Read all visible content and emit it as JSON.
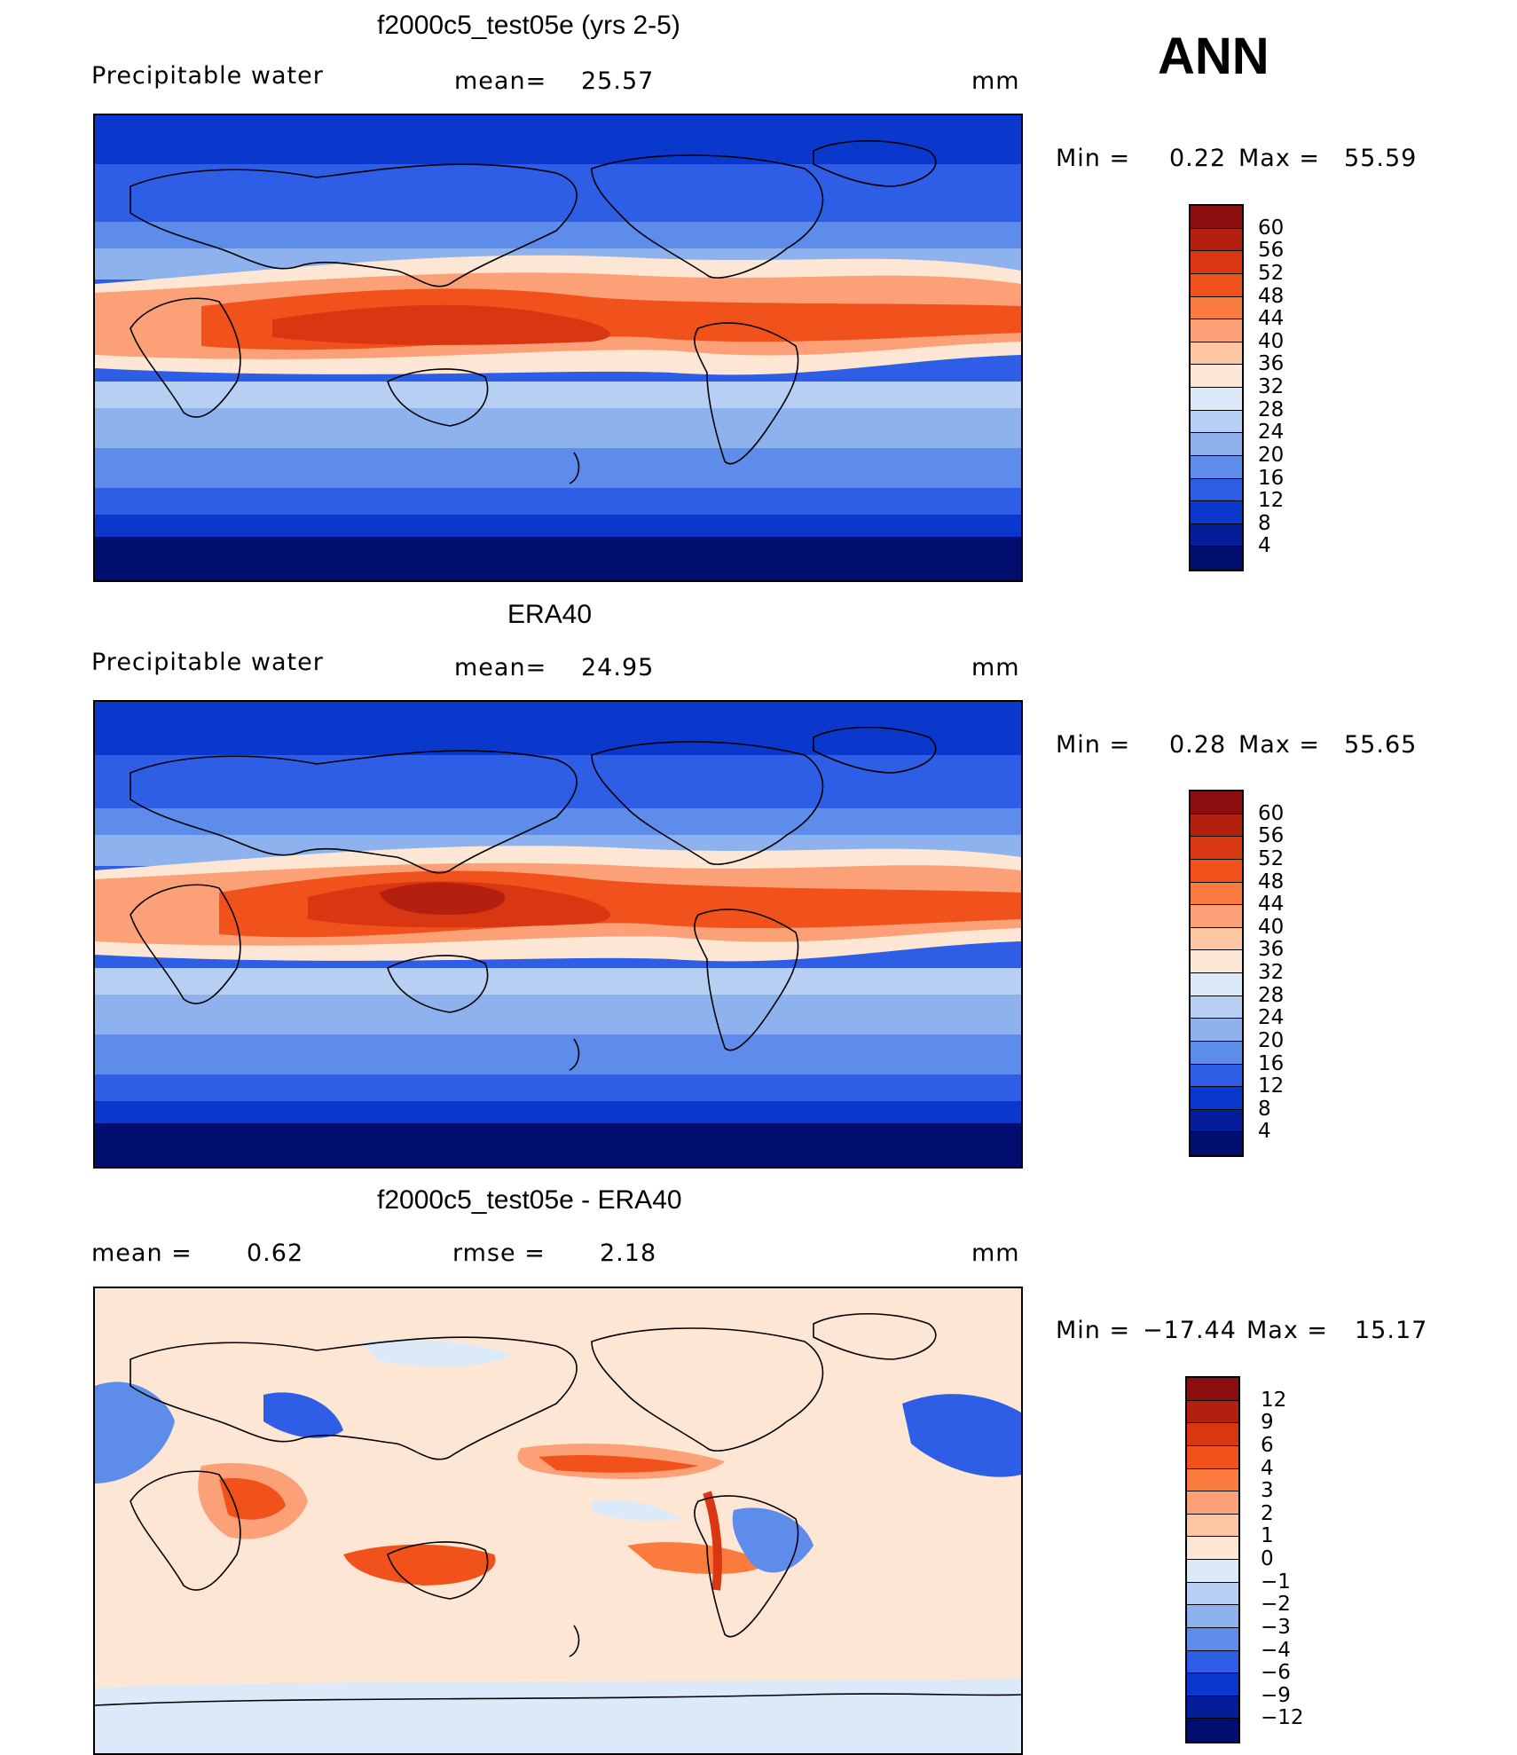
{
  "season": "ANN",
  "panels": [
    {
      "title": "f2000c5_test05e (yrs 2-5)",
      "left_label": "Precipitable water",
      "center_label": "mean=",
      "center_value": "25.57",
      "units": "mm",
      "stats": {
        "min_label": "Min =",
        "min": "0.22",
        "max_label": "Max =",
        "max": "55.59"
      },
      "colorbar": {
        "levels": [
          "60",
          "56",
          "52",
          "48",
          "44",
          "40",
          "36",
          "32",
          "28",
          "24",
          "20",
          "16",
          "12",
          "8",
          "4"
        ],
        "colors": [
          "#8b0d0d",
          "#b3200f",
          "#d93612",
          "#f1521c",
          "#fb7a3d",
          "#fca077",
          "#fdc6a3",
          "#fde6d3",
          "#dce9f8",
          "#b6cff3",
          "#8db2ee",
          "#5d8cea",
          "#2e5de6",
          "#0a37cc",
          "#041d9a",
          "#020d70"
        ]
      }
    },
    {
      "title": "ERA40",
      "left_label": "Precipitable water",
      "center_label": "mean=",
      "center_value": "24.95",
      "units": "mm",
      "stats": {
        "min_label": "Min =",
        "min": "0.28",
        "max_label": "Max =",
        "max": "55.65"
      },
      "colorbar": {
        "levels": [
          "60",
          "56",
          "52",
          "48",
          "44",
          "40",
          "36",
          "32",
          "28",
          "24",
          "20",
          "16",
          "12",
          "8",
          "4"
        ],
        "colors": [
          "#8b0d0d",
          "#b3200f",
          "#d93612",
          "#f1521c",
          "#fb7a3d",
          "#fca077",
          "#fdc6a3",
          "#fde6d3",
          "#dce9f8",
          "#b6cff3",
          "#8db2ee",
          "#5d8cea",
          "#2e5de6",
          "#0a37cc",
          "#041d9a",
          "#020d70"
        ]
      }
    },
    {
      "title": "f2000c5_test05e - ERA40",
      "left_label": "mean =",
      "left_value": "0.62",
      "center_label": "rmse =",
      "center_value": "2.18",
      "units": "mm",
      "stats": {
        "min_label": "Min =",
        "min": "−17.44",
        "max_label": "Max =",
        "max": "15.17"
      },
      "colorbar": {
        "levels": [
          "12",
          "9",
          "6",
          "4",
          "3",
          "2",
          "1",
          "0",
          "−1",
          "−2",
          "−3",
          "−4",
          "−6",
          "−9",
          "−12"
        ],
        "colors": [
          "#8b0d0d",
          "#b3200f",
          "#d93612",
          "#f1521c",
          "#fb7a3d",
          "#fca077",
          "#fdc6a3",
          "#fde6d3",
          "#dce9f8",
          "#b6cff3",
          "#8db2ee",
          "#5d8cea",
          "#2e5de6",
          "#0a37cc",
          "#041d9a",
          "#020d70"
        ]
      }
    }
  ]
}
